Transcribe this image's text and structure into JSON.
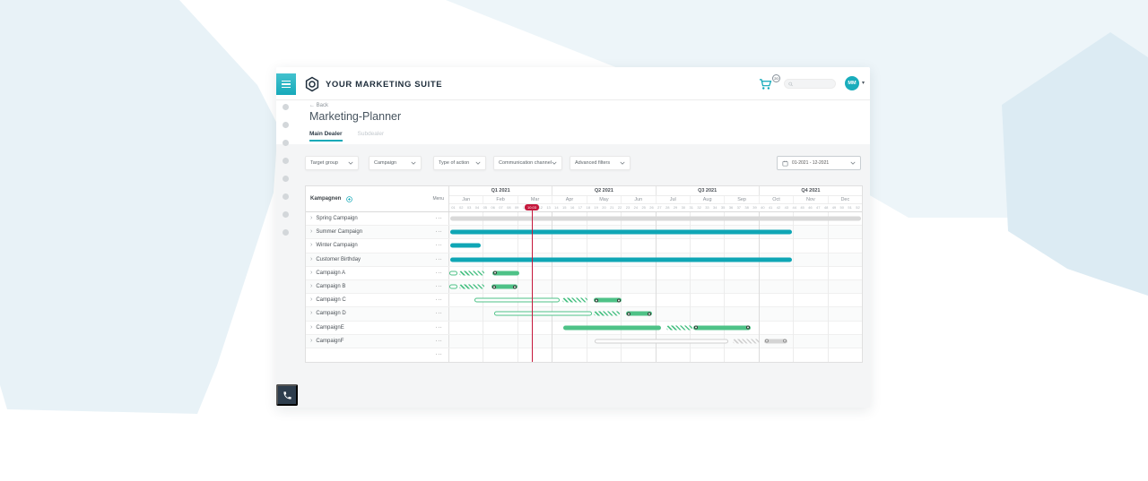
{
  "colors": {
    "brand_teal": "#14aab8",
    "navy": "#1e2d3b",
    "bar_teal": "#0fa6b5",
    "bar_green": "#4ec287",
    "bar_gray": "#d9d9d9",
    "today_red": "#c5183c",
    "panel_gray": "#f4f5f6"
  },
  "header": {
    "app_title": "YOUR MARKETING SUITE",
    "cart_badge": "20",
    "search_placeholder": "",
    "avatar_initials": "MM"
  },
  "page": {
    "back_label": "Back",
    "title": "Marketing-Planner",
    "tabs": [
      {
        "label": "Main Dealer",
        "active": true
      },
      {
        "label": "Subdealer",
        "active": false
      }
    ]
  },
  "filters": [
    {
      "label": "Target group"
    },
    {
      "label": "Campaign"
    },
    {
      "label": "Type of action"
    },
    {
      "label": "Communication channel"
    },
    {
      "label": "Advanced filters"
    }
  ],
  "date_range": {
    "value": "01-2021 - 12-2021"
  },
  "planner": {
    "list_header": "Kampagnen",
    "menu_header": "Menu",
    "row_menu_icon": "···",
    "quarters": [
      "Q1 2021",
      "Q2 2021",
      "Q3 2021",
      "Q4 2021"
    ],
    "months": [
      "Jan",
      "Feb",
      "Mar",
      "Apr",
      "May",
      "Jun",
      "Jul",
      "Aug",
      "Sep",
      "Oct",
      "Nov",
      "Dec"
    ],
    "weeks": [
      "01",
      "02",
      "03",
      "04",
      "05",
      "06",
      "07",
      "08",
      "09",
      "10",
      "11",
      "12",
      "13",
      "14",
      "15",
      "16",
      "17",
      "18",
      "19",
      "20",
      "21",
      "22",
      "23",
      "24",
      "25",
      "26",
      "27",
      "28",
      "29",
      "30",
      "31",
      "32",
      "33",
      "34",
      "35",
      "36",
      "37",
      "38",
      "39",
      "40",
      "41",
      "42",
      "43",
      "44",
      "45",
      "46",
      "47",
      "48",
      "49",
      "50",
      "51",
      "52"
    ],
    "today": {
      "label": "10.03",
      "position_pct": 20.0
    },
    "campaigns": [
      {
        "name": "Spring Campaign",
        "bars": [
          {
            "kind": "bar",
            "color": "gray",
            "start": 0.3,
            "width": 99.4
          }
        ]
      },
      {
        "name": "Summer Campaign",
        "bars": [
          {
            "kind": "bar",
            "color": "teal",
            "start": 0.3,
            "width": 82.7
          }
        ]
      },
      {
        "name": "Winter Campaign",
        "bars": [
          {
            "kind": "bar",
            "color": "teal",
            "start": 0.3,
            "width": 7.4
          }
        ]
      },
      {
        "name": "Customer Birthday",
        "bars": [
          {
            "kind": "bar",
            "color": "teal",
            "start": 0.3,
            "width": 82.7
          }
        ]
      },
      {
        "name": "Campaign A",
        "bars": [
          {
            "kind": "outline",
            "color": "green",
            "start": 0.1,
            "width": 1.9
          },
          {
            "kind": "hatch",
            "color": "green",
            "start": 2.4,
            "width": 6.0
          },
          {
            "kind": "dots",
            "color": "green",
            "start": 10.5,
            "width": 6.5,
            "dots": "left"
          }
        ]
      },
      {
        "name": "Campaign B",
        "bars": [
          {
            "kind": "outline",
            "color": "green",
            "start": 0.1,
            "width": 1.9
          },
          {
            "kind": "hatch",
            "color": "green",
            "start": 2.4,
            "width": 6.0
          },
          {
            "kind": "dots",
            "color": "green",
            "start": 10.3,
            "width": 6.2,
            "dots": "both"
          }
        ]
      },
      {
        "name": "Campaign C",
        "bars": [
          {
            "kind": "outline",
            "color": "green",
            "start": 6.1,
            "width": 20.6
          },
          {
            "kind": "hatch",
            "color": "green",
            "start": 27.4,
            "width": 6.1
          },
          {
            "kind": "dots",
            "color": "green",
            "start": 35.1,
            "width": 6.6,
            "dots": "both"
          }
        ]
      },
      {
        "name": "Campaign D",
        "bars": [
          {
            "kind": "outline",
            "color": "green",
            "start": 10.9,
            "width": 23.7
          },
          {
            "kind": "hatch",
            "color": "green",
            "start": 35.1,
            "width": 6.2
          },
          {
            "kind": "dots",
            "color": "green",
            "start": 42.8,
            "width": 6.4,
            "dots": "both"
          }
        ]
      },
      {
        "name": "CampaignE",
        "bars": [
          {
            "kind": "bar",
            "color": "green",
            "start": 27.6,
            "width": 23.8
          },
          {
            "kind": "hatch",
            "color": "green",
            "start": 52.7,
            "width": 6.3
          },
          {
            "kind": "dots",
            "color": "green",
            "start": 59.2,
            "width": 13.8,
            "dots": "both"
          }
        ]
      },
      {
        "name": "CampaignF",
        "bars": [
          {
            "kind": "outline",
            "color": "gray",
            "start": 35.2,
            "width": 32.4
          },
          {
            "kind": "hatch",
            "color": "gray",
            "start": 68.7,
            "width": 6.6
          },
          {
            "kind": "dots",
            "color": "gray",
            "start": 76.3,
            "width": 5.7,
            "dots": "both"
          }
        ]
      },
      {
        "name": "",
        "bars": []
      }
    ]
  }
}
